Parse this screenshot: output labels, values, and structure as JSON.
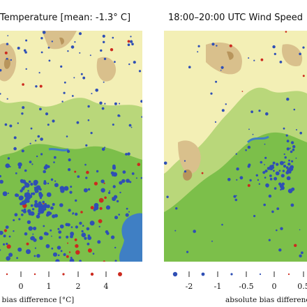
{
  "left_panel": {
    "title": "Temperature [mean: -1.3° C]",
    "legend": {
      "ticks": [
        "0",
        "1",
        "2",
        "4"
      ],
      "caption": "ute bias difference [°C]"
    }
  },
  "right_panel": {
    "title": "18:00–20:00 UTC Wind Speed",
    "legend": {
      "ticks": [
        "-2",
        "-1",
        "-0.5",
        "0",
        "0.5"
      ],
      "caption": "absolute bias difference"
    }
  },
  "colors": {
    "terrain_low": "#7cbf4a",
    "terrain_mid": "#b9d77a",
    "terrain_high": "#f3efb5",
    "terrain_peak": "#d9c08c",
    "terrain_ridge": "#b8955c",
    "water": "#3f7fc4",
    "negative_marker": "#2f4fb5",
    "positive_marker": "#cc2a1f"
  }
}
